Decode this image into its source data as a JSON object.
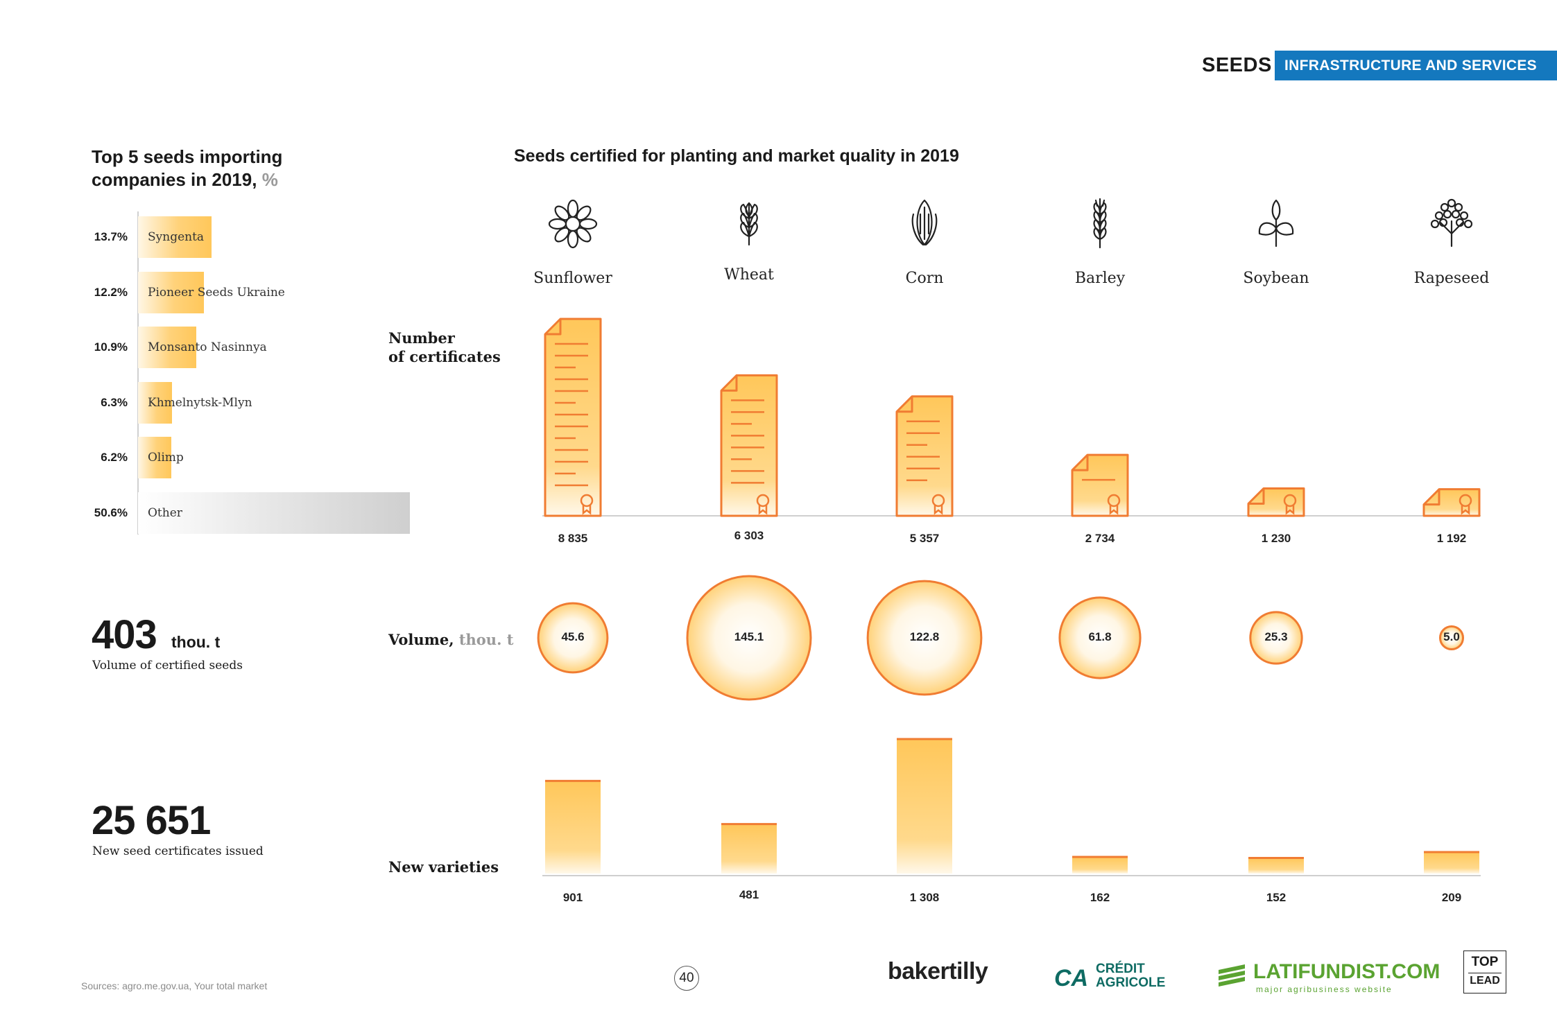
{
  "header": {
    "section": "SEEDS",
    "tag": "INFRASTRUCTURE AND SERVICES",
    "tag_color": "#1478be"
  },
  "left": {
    "title": "Top 5 seeds importing companies in 2019,",
    "title_unit": "%",
    "importers": [
      {
        "pct": "13.7%",
        "value": 13.7,
        "name": "Syngenta"
      },
      {
        "pct": "12.2%",
        "value": 12.2,
        "name": "Pioneer Seeds Ukraine"
      },
      {
        "pct": "10.9%",
        "value": 10.9,
        "name": "Monsanto Nasinnya"
      },
      {
        "pct": "6.3%",
        "value": 6.3,
        "name": "Khmelnytsk-Mlyn"
      },
      {
        "pct": "6.2%",
        "value": 6.2,
        "name": "Olimp"
      },
      {
        "pct": "50.6%",
        "value": 50.6,
        "name": "Other"
      }
    ],
    "volume": {
      "value": "403",
      "unit": "thou. t",
      "caption": "Volume of certified seeds"
    },
    "certificates": {
      "value": "25 651",
      "caption": "New seed certificates issued"
    }
  },
  "chart_title": "Seeds certified for planting and market quality in 2019",
  "row_labels": {
    "certificates_line1": "Number",
    "certificates_line2": "of certificates",
    "volume": "Volume,",
    "volume_unit": "thou. t",
    "varieties": "New varieties"
  },
  "chart_data": {
    "type": "bar",
    "categories": [
      "Sunflower",
      "Wheat",
      "Corn",
      "Barley",
      "Soybean",
      "Rapeseed"
    ],
    "icons": [
      "sunflower-icon",
      "wheat-icon",
      "corn-icon",
      "barley-icon",
      "soybean-icon",
      "rapeseed-icon"
    ],
    "series": [
      {
        "name": "Number of certificates",
        "values": [
          8835,
          6303,
          5357,
          2734,
          1230,
          1192
        ],
        "labels": [
          "8 835",
          "6 303",
          "5 357",
          "2 734",
          "1 230",
          "1 192"
        ]
      },
      {
        "name": "Volume, thou. t",
        "values": [
          45.6,
          145.1,
          122.8,
          61.8,
          25.3,
          5.0
        ],
        "labels": [
          "45.6",
          "145.1",
          "122.8",
          "61.8",
          "25.3",
          "5.0"
        ]
      },
      {
        "name": "New varieties",
        "values": [
          901,
          481,
          1308,
          162,
          152,
          209
        ],
        "labels": [
          "901",
          "481",
          "1 308",
          "162",
          "152",
          "209"
        ]
      }
    ],
    "colors": {
      "accent": "#f07c32",
      "fill_top": "#ffc75a",
      "fill_bottom": "#fff8ea"
    }
  },
  "footer": {
    "sources": "Sources: agro.me.gov.ua, Your total market",
    "page": "40",
    "logos": {
      "bakertilly": "bakertilly",
      "ca_line1": "CRÉDIT",
      "ca_line2": "AGRICOLE",
      "latifundist": "LATIFUNDIST.COM",
      "latifundist_sub": "major agribusiness website",
      "top": "TOP",
      "lead": "LEAD"
    }
  }
}
